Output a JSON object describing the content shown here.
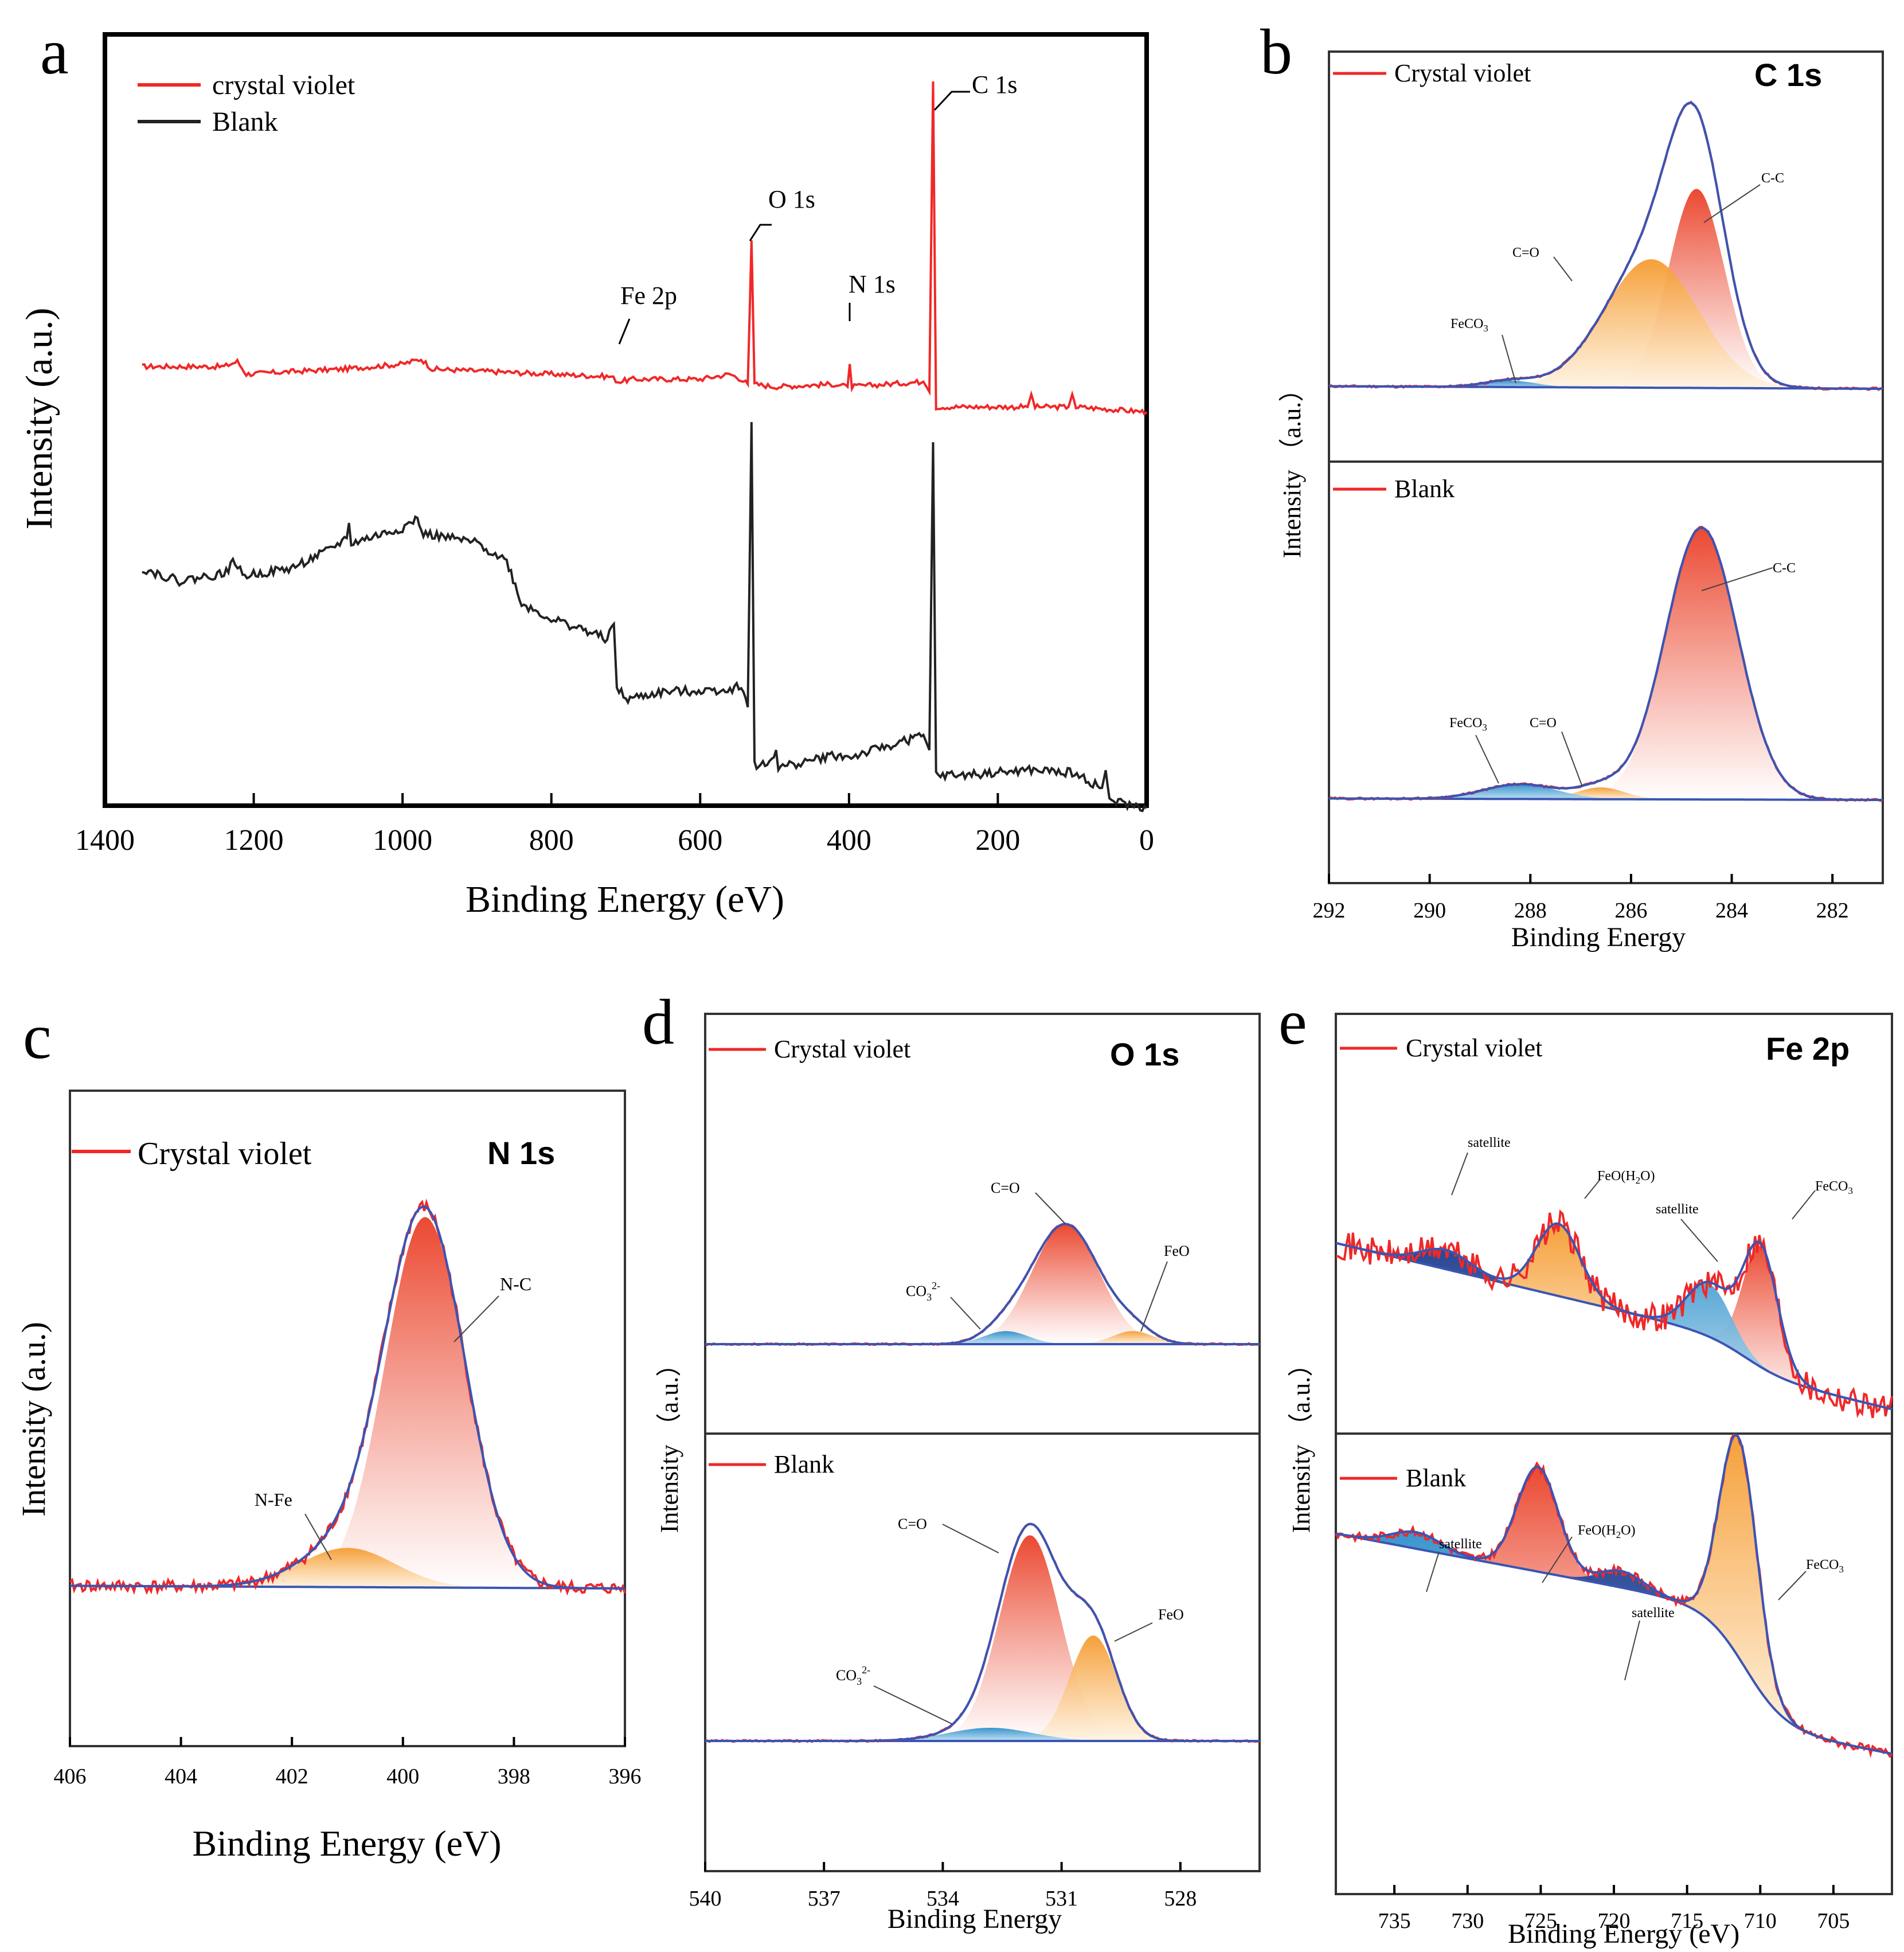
{
  "colors": {
    "red": "#f02828",
    "black": "#222222",
    "blue": "#3a55b4",
    "axis": "#000000",
    "peak_red": "#ec4b30",
    "peak_orange": "#f6a23a",
    "peak_blue": "#3d9bd0",
    "peak_navy": "#1f3f8f"
  },
  "chart_data": [
    {
      "panel": "a",
      "type": "line",
      "xlabel": "Binding Energy (eV)",
      "ylabel": "Intensity (a.u.)",
      "xlim": [
        1400,
        0
      ],
      "x_ticks": [
        1400,
        1200,
        1000,
        800,
        600,
        400,
        200,
        0
      ],
      "legend": [
        "crystal violet",
        "Blank"
      ],
      "series": [
        {
          "name": "crystal violet",
          "color": "#f02828",
          "points": [
            [
              1350,
              0.82
            ],
            [
              1240,
              0.82
            ],
            [
              1222,
              0.84
            ],
            [
              1210,
              0.79
            ],
            [
              1150,
              0.8
            ],
            [
              1080,
              0.81
            ],
            [
              1000,
              0.83
            ],
            [
              975,
              0.85
            ],
            [
              960,
              0.81
            ],
            [
              880,
              0.8
            ],
            [
              800,
              0.79
            ],
            [
              720,
              0.78
            ],
            [
              710,
              0.76
            ],
            [
              690,
              0.77
            ],
            [
              600,
              0.77
            ],
            [
              560,
              0.79
            ],
            [
              545,
              0.77
            ],
            [
              536,
              0.75
            ],
            [
              531,
              1.32
            ],
            [
              527,
              0.75
            ],
            [
              500,
              0.74
            ],
            [
              420,
              0.75
            ],
            [
              402,
              0.74
            ],
            [
              399,
              0.83
            ],
            [
              396,
              0.74
            ],
            [
              350,
              0.75
            ],
            [
              300,
              0.76
            ],
            [
              292,
              0.72
            ],
            [
              287,
              1.95
            ],
            [
              283,
              0.66
            ],
            [
              250,
              0.66
            ],
            [
              160,
              0.66
            ],
            [
              155,
              0.71
            ],
            [
              150,
              0.66
            ],
            [
              105,
              0.66
            ],
            [
              100,
              0.71
            ],
            [
              95,
              0.66
            ],
            [
              0,
              0.64
            ]
          ]
        },
        {
          "name": "Blank",
          "color": "#222222",
          "points": [
            [
              1350,
              0.02
            ],
            [
              1300,
              -0.03
            ],
            [
              1240,
              0.0
            ],
            [
              1225,
              0.05
            ],
            [
              1215,
              -0.01
            ],
            [
              1150,
              0.02
            ],
            [
              1100,
              0.09
            ],
            [
              1075,
              0.14
            ],
            [
              1072,
              0.2
            ],
            [
              1069,
              0.12
            ],
            [
              1000,
              0.18
            ],
            [
              980,
              0.22
            ],
            [
              975,
              0.16
            ],
            [
              900,
              0.12
            ],
            [
              860,
              0.05
            ],
            [
              840,
              -0.12
            ],
            [
              800,
              -0.18
            ],
            [
              760,
              -0.22
            ],
            [
              725,
              -0.26
            ],
            [
              716,
              -0.2
            ],
            [
              712,
              -0.45
            ],
            [
              700,
              -0.5
            ],
            [
              650,
              -0.47
            ],
            [
              560,
              -0.46
            ],
            [
              545,
              -0.44
            ],
            [
              536,
              -0.53
            ],
            [
              531,
              0.6
            ],
            [
              527,
              -0.76
            ],
            [
              510,
              -0.76
            ],
            [
              498,
              -0.7
            ],
            [
              495,
              -0.77
            ],
            [
              420,
              -0.72
            ],
            [
              400,
              -0.73
            ],
            [
              320,
              -0.66
            ],
            [
              300,
              -0.64
            ],
            [
              292,
              -0.7
            ],
            [
              287,
              0.52
            ],
            [
              283,
              -0.8
            ],
            [
              250,
              -0.8
            ],
            [
              155,
              -0.78
            ],
            [
              100,
              -0.79
            ],
            [
              60,
              -0.85
            ],
            [
              55,
              -0.78
            ],
            [
              50,
              -0.9
            ],
            [
              20,
              -0.92
            ],
            [
              0,
              -0.93
            ]
          ]
        }
      ],
      "annotations": [
        {
          "label": "C 1s",
          "x": 287
        },
        {
          "label": "O 1s",
          "x": 531
        },
        {
          "label": "N 1s",
          "x": 399
        },
        {
          "label": "Fe 2p",
          "x": 711
        }
      ]
    },
    {
      "panel": "b",
      "type": "line",
      "title": "C 1s",
      "xlabel": "Binding Energy",
      "ylabel": "Intensity（a.u.）",
      "xlim": [
        292,
        281
      ],
      "x_ticks": [
        292,
        290,
        288,
        286,
        284,
        282
      ],
      "subplots": [
        {
          "legend": "Crystal violet",
          "components": [
            {
              "label": "C-C",
              "center": 284.7,
              "height": 0.62,
              "fwhm": 1.3,
              "color": "#ec4b30"
            },
            {
              "label": "C=O",
              "center": 285.6,
              "height": 0.4,
              "fwhm": 2.2,
              "color": "#f6a23a"
            },
            {
              "label": "FeCO3",
              "center": 288.4,
              "height": 0.02,
              "fwhm": 1.2,
              "color": "#3d9bd0"
            }
          ]
        },
        {
          "legend": "Blank",
          "components": [
            {
              "label": "C-C",
              "center": 284.6,
              "height": 0.92,
              "fwhm": 1.7,
              "color": "#ec4b30"
            },
            {
              "label": "C=O",
              "center": 286.6,
              "height": 0.04,
              "fwhm": 1.1,
              "color": "#f6a23a"
            },
            {
              "label": "FeCO3",
              "center": 288.2,
              "height": 0.05,
              "fwhm": 1.7,
              "color": "#3d9bd0"
            }
          ]
        }
      ]
    },
    {
      "panel": "c",
      "type": "line",
      "title": "N 1s",
      "xlabel": "Binding Energy (eV)",
      "ylabel": "Intensity (a.u.)",
      "xlim": [
        406,
        396
      ],
      "x_ticks": [
        406,
        404,
        402,
        400,
        398,
        396
      ],
      "legend": "Crystal violet",
      "components": [
        {
          "label": "N-C",
          "center": 399.6,
          "height": 0.85,
          "fwhm": 1.7,
          "color": "#ec4b30"
        },
        {
          "label": "N-Fe",
          "center": 401.0,
          "height": 0.09,
          "fwhm": 2.0,
          "color": "#f6a23a"
        }
      ]
    },
    {
      "panel": "d",
      "type": "line",
      "title": "O 1s",
      "xlabel": "Binding Energy",
      "ylabel": "Intensity（a.u.）",
      "xlim": [
        540,
        526
      ],
      "x_ticks": [
        540,
        537,
        534,
        531,
        528
      ],
      "subplots": [
        {
          "legend": "Crystal violet",
          "components": [
            {
              "label": "C=O",
              "center": 530.9,
              "height": 0.55,
              "fwhm": 2.0,
              "color": "#ec4b30"
            },
            {
              "label": "CO3 2-",
              "center": 532.4,
              "height": 0.06,
              "fwhm": 1.3,
              "color": "#3d9bd0"
            },
            {
              "label": "FeO",
              "center": 529.2,
              "height": 0.06,
              "fwhm": 1.2,
              "color": "#f6a23a"
            }
          ]
        },
        {
          "legend": "Blank",
          "components": [
            {
              "label": "C=O",
              "center": 531.8,
              "height": 0.78,
              "fwhm": 1.8,
              "color": "#ec4b30"
            },
            {
              "label": "FeO",
              "center": 530.2,
              "height": 0.4,
              "fwhm": 1.4,
              "color": "#f6a23a"
            },
            {
              "label": "CO3 2-",
              "center": 532.8,
              "height": 0.05,
              "fwhm": 2.5,
              "color": "#3d9bd0"
            }
          ]
        }
      ]
    },
    {
      "panel": "e",
      "type": "line",
      "title": "Fe 2p",
      "xlabel": "Binding Energy (eV)",
      "ylabel": "Intensity（a.u.）",
      "xlim": [
        739,
        701
      ],
      "x_ticks": [
        735,
        730,
        725,
        720,
        715,
        710,
        705
      ],
      "subplots": [
        {
          "legend": "Crystal violet",
          "components": [
            {
              "label": "FeCO3",
              "center": 710.0,
              "height": 0.5,
              "fwhm": 2.8,
              "color": "#ec4b30"
            },
            {
              "label": "satellite",
              "center": 713.5,
              "height": 0.22,
              "fwhm": 3.5,
              "color": "#3d9bd0"
            },
            {
              "label": "FeO(H2O)",
              "center": 723.8,
              "height": 0.3,
              "fwhm": 3.5,
              "color": "#f6a23a"
            },
            {
              "label": "satellite",
              "center": 731.5,
              "height": 0.08,
              "fwhm": 4.0,
              "color": "#1f3f8f"
            }
          ]
        },
        {
          "legend": "Blank",
          "components": [
            {
              "label": "FeCO3",
              "center": 711.5,
              "height": 0.8,
              "fwhm": 3.0,
              "color": "#f6a23a"
            },
            {
              "label": "FeO(H2O)",
              "center": 725.2,
              "height": 0.38,
              "fwhm": 3.3,
              "color": "#ec4b30"
            },
            {
              "label": "satellite",
              "center": 719.5,
              "height": 0.06,
              "fwhm": 3.5,
              "color": "#1f3f8f"
            },
            {
              "label": "satellite",
              "center": 733.5,
              "height": 0.06,
              "fwhm": 4.0,
              "color": "#3d9bd0"
            }
          ]
        }
      ]
    }
  ],
  "text": {
    "panel_a": {
      "letter": "a",
      "legend1": "crystal violet",
      "legend2": "Blank",
      "c1s": "C 1s",
      "o1s": "O 1s",
      "n1s": "N 1s",
      "fe2p": "Fe 2p",
      "xlabel": "Binding Energy (eV)",
      "ylabel": "Intensity (a.u.)",
      "ticks": [
        "1400",
        "1200",
        "1000",
        "800",
        "600",
        "400",
        "200",
        "0"
      ]
    },
    "panel_b": {
      "letter": "b",
      "title": "C 1s",
      "legend_top": "Crystal violet",
      "legend_bottom": "Blank",
      "top_cc": "C-C",
      "top_co": "C=O",
      "top_feco3": "FeCO",
      "bot_cc": "C-C",
      "bot_co": "C=O",
      "bot_feco3": "FeCO",
      "sub3": "3",
      "ylabel": "Intensity （a.u.）",
      "xlabel": "Binding Energy",
      "ticks": [
        "292",
        "290",
        "288",
        "286",
        "284",
        "282"
      ]
    },
    "panel_c": {
      "letter": "c",
      "title": "N 1s",
      "legend": "Crystal violet",
      "nc": "N-C",
      "nfe": "N-Fe",
      "xlabel": "Binding Energy (eV)",
      "ylabel": "Intensity (a.u.)",
      "ticks": [
        "406",
        "404",
        "402",
        "400",
        "398",
        "396"
      ]
    },
    "panel_d": {
      "letter": "d",
      "title": "O 1s",
      "legend_top": "Crystal violet",
      "legend_bottom": "Blank",
      "top_co": "C=O",
      "top_co3": "CO",
      "top_feo": "FeO",
      "bot_co": "C=O",
      "bot_co3": "CO",
      "bot_feo": "FeO",
      "sub3": "3",
      "sup2": "2-",
      "ylabel": "Intensity （a.u.）",
      "xlabel": "Binding Energy",
      "ticks": [
        "540",
        "537",
        "534",
        "531",
        "528"
      ]
    },
    "panel_e": {
      "letter": "e",
      "title": "Fe 2p",
      "legend_top": "Crystal violet",
      "legend_bottom": "Blank",
      "top_sat1": "satellite",
      "top_feoh2o": "FeO(H",
      "top_feoh2o_end": "O)",
      "top_sat2": "satellite",
      "top_feco3": "FeCO",
      "bot_sat1": "satellite",
      "bot_feoh2o": "FeO(H",
      "bot_feoh2o_end": "O)",
      "bot_sat2": "satellite",
      "bot_feco3": "FeCO",
      "sub2": "2",
      "sub3": "3",
      "ylabel": "Intensity （a.u.）",
      "xlabel": "Binding Energy (eV)",
      "ticks": [
        "735",
        "730",
        "725",
        "720",
        "715",
        "710",
        "705"
      ]
    }
  }
}
